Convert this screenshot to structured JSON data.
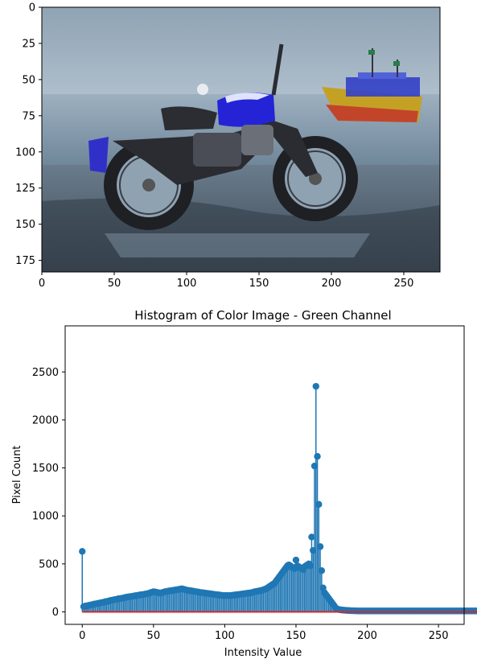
{
  "chart_data": [
    {
      "type": "image",
      "title": "",
      "xlim": [
        0,
        275
      ],
      "ylim": [
        183,
        0
      ],
      "xticks": [
        0,
        50,
        100,
        150,
        200,
        250
      ],
      "yticks": [
        0,
        25,
        50,
        75,
        100,
        125,
        150,
        175
      ],
      "colors": {
        "sky_top": "#8fa3b4",
        "sky_bottom": "#c3d0db",
        "sea": "#8aa0b3",
        "sand_dark": "#44505e",
        "bike_body": "#2a2c31",
        "tank_blue": "#2424d6",
        "boat_hull": "#c4a125",
        "boat_blue": "#3340c8"
      }
    },
    {
      "type": "stem",
      "title": "Histogram of Color Image - Green Channel",
      "xlabel": "Intensity Value",
      "ylabel": "Pixel Count",
      "xlim": [
        -12,
        268
      ],
      "ylim": [
        -130,
        2980
      ],
      "xticks": [
        0,
        50,
        100,
        150,
        200,
        250
      ],
      "yticks": [
        0,
        500,
        1000,
        1500,
        2000,
        2500
      ],
      "stem_color": "#1f77b4",
      "baseline_color": "#d62728",
      "values": [
        630,
        55,
        60,
        62,
        65,
        70,
        72,
        75,
        80,
        82,
        85,
        88,
        90,
        95,
        98,
        100,
        105,
        108,
        110,
        115,
        120,
        122,
        125,
        128,
        130,
        135,
        138,
        140,
        142,
        145,
        150,
        152,
        155,
        158,
        160,
        162,
        165,
        168,
        170,
        172,
        175,
        178,
        180,
        182,
        185,
        188,
        190,
        195,
        200,
        205,
        210,
        208,
        205,
        200,
        198,
        195,
        200,
        205,
        210,
        212,
        215,
        218,
        220,
        222,
        225,
        228,
        230,
        232,
        235,
        238,
        240,
        236,
        232,
        228,
        225,
        222,
        220,
        218,
        215,
        212,
        210,
        208,
        205,
        202,
        200,
        198,
        196,
        194,
        192,
        190,
        188,
        186,
        184,
        182,
        180,
        178,
        176,
        174,
        172,
        170,
        170,
        170,
        170,
        170,
        170,
        172,
        174,
        176,
        178,
        180,
        182,
        184,
        186,
        188,
        190,
        192,
        194,
        196,
        198,
        200,
        205,
        210,
        212,
        215,
        218,
        220,
        225,
        230,
        235,
        240,
        250,
        260,
        270,
        280,
        290,
        300,
        320,
        340,
        360,
        380,
        400,
        420,
        440,
        460,
        480,
        490,
        480,
        470,
        460,
        450,
        540,
        480,
        470,
        460,
        450,
        440,
        470,
        480,
        490,
        500,
        480,
        780,
        640,
        1520,
        2350,
        1620,
        1120,
        680,
        430,
        250,
        200,
        180,
        160,
        140,
        120,
        100,
        80,
        60,
        40,
        30,
        25,
        22,
        20,
        18,
        17,
        16,
        15,
        14,
        13,
        12,
        12,
        11,
        11,
        10,
        10,
        10,
        10,
        10,
        10,
        10,
        10,
        10,
        10,
        10,
        10,
        10,
        10,
        10,
        10,
        10,
        10,
        10,
        10,
        10,
        10,
        10,
        10,
        10,
        10,
        10,
        10,
        10,
        10,
        10,
        10,
        10,
        10,
        10,
        10,
        10,
        10,
        10,
        10,
        10,
        10,
        10,
        10,
        10,
        10,
        10,
        10,
        10,
        10,
        10,
        10,
        10,
        10,
        10,
        10,
        10,
        10,
        10,
        10,
        10,
        10,
        10,
        10,
        10,
        10,
        10,
        10,
        10,
        10,
        10,
        10,
        10,
        10,
        10,
        10,
        10,
        10,
        10,
        10,
        10,
        10,
        10,
        10,
        10,
        10,
        10,
        10,
        10,
        10,
        10,
        10,
        10,
        10,
        10,
        10,
        10,
        10
      ]
    }
  ]
}
